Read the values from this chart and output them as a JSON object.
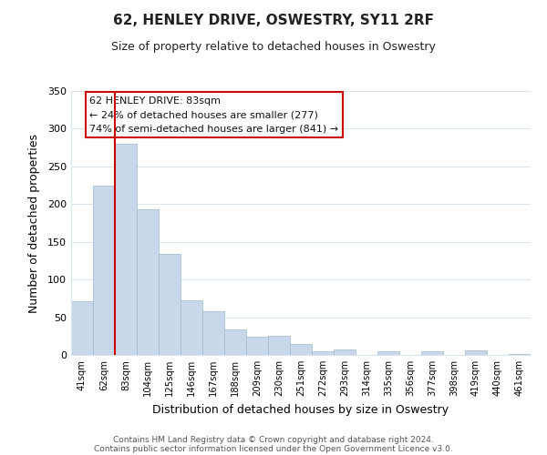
{
  "title": "62, HENLEY DRIVE, OSWESTRY, SY11 2RF",
  "subtitle": "Size of property relative to detached houses in Oswestry",
  "xlabel": "Distribution of detached houses by size in Oswestry",
  "ylabel": "Number of detached properties",
  "bar_labels": [
    "41sqm",
    "62sqm",
    "83sqm",
    "104sqm",
    "125sqm",
    "146sqm",
    "167sqm",
    "188sqm",
    "209sqm",
    "230sqm",
    "251sqm",
    "272sqm",
    "293sqm",
    "314sqm",
    "335sqm",
    "356sqm",
    "377sqm",
    "398sqm",
    "419sqm",
    "440sqm",
    "461sqm"
  ],
  "bar_values": [
    71,
    224,
    280,
    193,
    134,
    72,
    58,
    34,
    24,
    25,
    15,
    5,
    7,
    0,
    5,
    0,
    5,
    0,
    6,
    0,
    1
  ],
  "bar_color": "#c8d8ea",
  "bar_edge_color": "#a0b8cc",
  "highlight_bar_index": 2,
  "highlight_line_color": "#cc0000",
  "ylim": [
    0,
    350
  ],
  "yticks": [
    0,
    50,
    100,
    150,
    200,
    250,
    300,
    350
  ],
  "annotation_line1": "62 HENLEY DRIVE: 83sqm",
  "annotation_line2": "← 24% of detached houses are smaller (277)",
  "annotation_line3": "74% of semi-detached houses are larger (841) →",
  "footer_line1": "Contains HM Land Registry data © Crown copyright and database right 2024.",
  "footer_line2": "Contains public sector information licensed under the Open Government Licence v3.0.",
  "background_color": "#ffffff",
  "grid_color": "#d8e4ee"
}
